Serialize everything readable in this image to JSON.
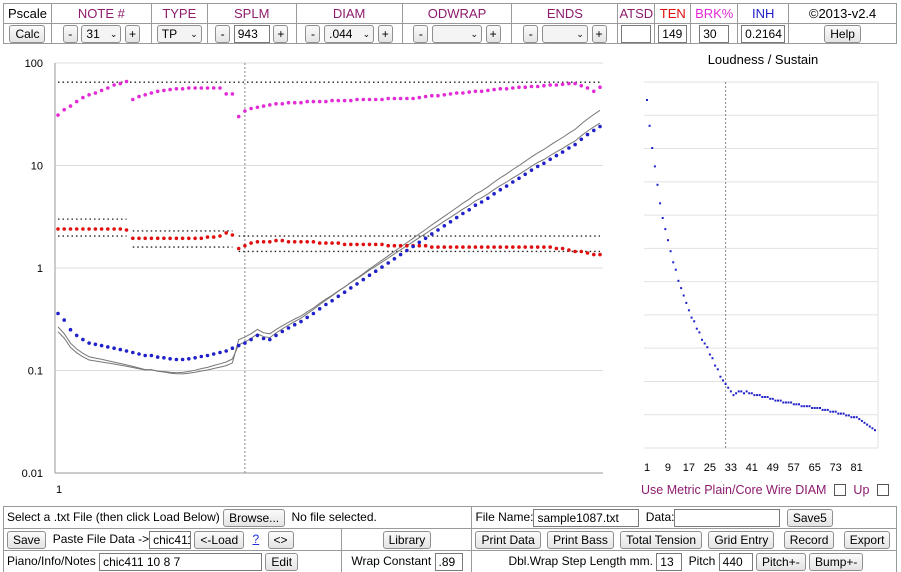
{
  "header": {
    "cells": [
      {
        "label": "Pscale",
        "color": "#000000"
      },
      {
        "label": "NOTE #",
        "color": "#8e1b6d"
      },
      {
        "label": "TYPE",
        "color": "#8e1b6d"
      },
      {
        "label": "SPLM",
        "color": "#8e1b6d"
      },
      {
        "label": "DIAM",
        "color": "#8e1b6d"
      },
      {
        "label": "ODWRAP",
        "color": "#8e1b6d"
      },
      {
        "label": "ENDS",
        "color": "#8e1b6d"
      },
      {
        "label": "ATSD",
        "color": "#8e1b6d"
      },
      {
        "label": "TEN",
        "color": "#e01010"
      },
      {
        "label": "BRK%",
        "color": "#e22bd6"
      },
      {
        "label": "INH",
        "color": "#2020c8"
      },
      {
        "label": "©2013-v2.4",
        "color": "#000000"
      }
    ]
  },
  "controls": {
    "calc": "Calc",
    "minus": "-",
    "plus": "+",
    "note_value": "31",
    "type_value": "TP",
    "splm_value": "943",
    "diam_value": ".044",
    "odwrap_value": "",
    "ends_value": "",
    "atsd_value": "",
    "ten_value": "149",
    "brk_value": "30",
    "inh_value": "0.2164",
    "help": "Help"
  },
  "main_chart": {
    "y_ticks": [
      "100",
      "10",
      "1",
      "0.1",
      "0.01"
    ],
    "x_tick": "1"
  },
  "chart_data": [
    {
      "type": "scatter",
      "title": "",
      "y_scale": "log",
      "ylim": [
        0.01,
        100
      ],
      "x_range": [
        1,
        88
      ],
      "grid": true,
      "series": [
        {
          "name": "",
          "color": "#e22bd6",
          "x": [
            1,
            2,
            3,
            4,
            5,
            6,
            7,
            8,
            9,
            10,
            11,
            12,
            13,
            14,
            15,
            16,
            17,
            18,
            19,
            20,
            21,
            22,
            23,
            24,
            25,
            26,
            27,
            28,
            29,
            30,
            31,
            32,
            33,
            34,
            35,
            36,
            37,
            38,
            39,
            40,
            41,
            42,
            43,
            44,
            45,
            46,
            47,
            48,
            49,
            50,
            51,
            52,
            53,
            54,
            55,
            56,
            57,
            58,
            59,
            60,
            61,
            62,
            63,
            64,
            65,
            66,
            67,
            68,
            69,
            70,
            71,
            72,
            73,
            74,
            75,
            76,
            77,
            78,
            79,
            80,
            81,
            82,
            83,
            84,
            85,
            86,
            87,
            88
          ],
          "y": [
            31,
            35,
            38,
            42,
            46,
            49,
            51,
            54,
            57,
            61,
            63,
            66,
            44,
            47,
            49,
            51,
            53,
            54,
            55,
            56,
            56,
            57,
            57,
            57,
            57,
            57,
            57,
            50,
            50,
            30,
            34,
            36,
            37,
            38,
            39,
            40,
            40,
            41,
            41,
            41,
            42,
            42,
            42,
            42,
            43,
            43,
            43,
            43,
            44,
            44,
            44,
            44,
            44,
            45,
            45,
            45,
            45,
            45,
            46,
            47,
            48,
            48,
            49,
            50,
            51,
            51,
            52,
            53,
            53,
            54,
            55,
            56,
            56,
            57,
            58,
            58,
            59,
            59,
            60,
            61,
            61,
            62,
            63,
            63,
            60,
            57,
            53,
            58
          ]
        },
        {
          "name": "",
          "color": "#e01010",
          "x": [
            1,
            2,
            3,
            4,
            5,
            6,
            7,
            8,
            9,
            10,
            11,
            12,
            13,
            14,
            15,
            16,
            17,
            18,
            19,
            20,
            21,
            22,
            23,
            24,
            25,
            26,
            27,
            28,
            29,
            30,
            31,
            32,
            33,
            34,
            35,
            36,
            37,
            38,
            39,
            40,
            41,
            42,
            43,
            44,
            45,
            46,
            47,
            48,
            49,
            50,
            51,
            52,
            53,
            54,
            55,
            56,
            57,
            58,
            59,
            60,
            61,
            62,
            63,
            64,
            65,
            66,
            67,
            68,
            69,
            70,
            71,
            72,
            73,
            74,
            75,
            76,
            77,
            78,
            79,
            80,
            81,
            82,
            83,
            84,
            85,
            86,
            87,
            88
          ],
          "y": [
            2.4,
            2.4,
            2.4,
            2.4,
            2.4,
            2.4,
            2.4,
            2.4,
            2.4,
            2.4,
            2.4,
            2.35,
            1.95,
            1.95,
            1.95,
            1.95,
            1.95,
            1.95,
            1.95,
            1.95,
            1.95,
            1.95,
            1.95,
            1.95,
            2.0,
            2.0,
            2.05,
            2.2,
            2.1,
            1.55,
            1.65,
            1.75,
            1.8,
            1.8,
            1.8,
            1.85,
            1.85,
            1.8,
            1.8,
            1.8,
            1.8,
            1.8,
            1.75,
            1.75,
            1.75,
            1.75,
            1.7,
            1.7,
            1.7,
            1.7,
            1.7,
            1.7,
            1.7,
            1.65,
            1.65,
            1.65,
            1.65,
            1.65,
            1.65,
            1.65,
            1.6,
            1.6,
            1.6,
            1.6,
            1.6,
            1.6,
            1.6,
            1.6,
            1.6,
            1.6,
            1.6,
            1.6,
            1.6,
            1.6,
            1.6,
            1.6,
            1.6,
            1.6,
            1.6,
            1.6,
            1.55,
            1.55,
            1.5,
            1.45,
            1.45,
            1.4,
            1.35,
            1.35
          ]
        },
        {
          "name": "",
          "color": "#2020c8",
          "x": [
            1,
            2,
            3,
            4,
            5,
            6,
            7,
            8,
            9,
            10,
            11,
            12,
            13,
            14,
            15,
            16,
            17,
            18,
            19,
            20,
            21,
            22,
            23,
            24,
            25,
            26,
            27,
            28,
            29,
            30,
            31,
            32,
            33,
            34,
            35,
            36,
            37,
            38,
            39,
            40,
            41,
            42,
            43,
            44,
            45,
            46,
            47,
            48,
            49,
            50,
            51,
            52,
            53,
            54,
            55,
            56,
            57,
            58,
            59,
            60,
            61,
            62,
            63,
            64,
            65,
            66,
            67,
            68,
            69,
            70,
            71,
            72,
            73,
            74,
            75,
            76,
            77,
            78,
            79,
            80,
            81,
            82,
            83,
            84,
            85,
            86,
            87,
            88
          ],
          "y": [
            0.36,
            0.31,
            0.25,
            0.22,
            0.2,
            0.185,
            0.18,
            0.175,
            0.17,
            0.165,
            0.16,
            0.155,
            0.15,
            0.145,
            0.14,
            0.14,
            0.135,
            0.133,
            0.13,
            0.128,
            0.128,
            0.13,
            0.133,
            0.137,
            0.14,
            0.145,
            0.15,
            0.155,
            0.165,
            0.175,
            0.185,
            0.2,
            0.22,
            0.205,
            0.2,
            0.22,
            0.24,
            0.26,
            0.28,
            0.3,
            0.33,
            0.36,
            0.4,
            0.44,
            0.48,
            0.53,
            0.58,
            0.64,
            0.7,
            0.77,
            0.85,
            0.93,
            1.02,
            1.12,
            1.23,
            1.35,
            1.48,
            1.62,
            1.78,
            1.95,
            2.15,
            2.35,
            2.58,
            2.82,
            3.1,
            3.4,
            3.7,
            4.1,
            4.4,
            4.8,
            5.3,
            5.8,
            6.3,
            6.9,
            7.5,
            8.2,
            9.0,
            9.8,
            10.5,
            11.5,
            12.5,
            13.5,
            14.8,
            16.0,
            18.0,
            20.0,
            22.0,
            24.0
          ]
        }
      ]
    },
    {
      "type": "scatter",
      "title": "Loudness / Sustain",
      "x_ticks": [
        "1",
        "9",
        "17",
        "25",
        "33",
        "41",
        "49",
        "57",
        "65",
        "73",
        "81"
      ],
      "x_range": [
        1,
        88
      ],
      "series": [
        {
          "name": "",
          "color": "#2020c8",
          "x": [
            1,
            2,
            3,
            4,
            5,
            6,
            7,
            8,
            9,
            10,
            11,
            12,
            13,
            14,
            15,
            16,
            17,
            18,
            19,
            20,
            21,
            22,
            23,
            24,
            25,
            26,
            27,
            28,
            29,
            30,
            31,
            32,
            33,
            34,
            35,
            36,
            37,
            38,
            39,
            40,
            41,
            42,
            43,
            44,
            45,
            46,
            47,
            48,
            49,
            50,
            51,
            52,
            53,
            54,
            55,
            56,
            57,
            58,
            59,
            60,
            61,
            62,
            63,
            64,
            65,
            66,
            67,
            68,
            69,
            70,
            71,
            72,
            73,
            74,
            75,
            76,
            77,
            78,
            79,
            80,
            81,
            82,
            83,
            84,
            85,
            86,
            87,
            88
          ],
          "y": [
            100,
            93,
            87,
            82,
            77,
            72,
            68,
            65,
            62,
            59,
            56,
            54,
            51,
            49,
            47,
            45,
            43,
            41,
            40,
            38,
            37,
            35,
            34,
            33,
            31,
            30,
            28,
            27,
            25,
            24,
            23,
            22,
            21,
            20,
            20.5,
            21,
            21,
            20.5,
            21,
            20.5,
            20.5,
            20,
            20,
            20,
            19.5,
            19.5,
            19.5,
            19,
            19,
            18.5,
            18.5,
            18.5,
            18,
            18,
            18,
            18,
            17.5,
            17.5,
            17.5,
            17,
            17,
            17,
            17,
            16.5,
            16.5,
            16.5,
            16.5,
            16,
            16,
            16,
            15.5,
            15.5,
            15.5,
            15,
            15,
            15,
            14.5,
            14.5,
            14,
            14,
            14,
            13.5,
            13,
            12.5,
            12,
            11.5,
            11,
            10.5
          ]
        }
      ]
    }
  ],
  "metric": {
    "label": "Use Metric Plain/Core Wire DIAM",
    "up": "Up"
  },
  "bottom": {
    "select_file_label": "Select a .txt File (then click Load Below)",
    "browse": "Browse...",
    "no_file": "No file selected.",
    "file_name_label": "File Name:",
    "file_name_value": "sample1087.txt",
    "data_label": "Data:",
    "data_value": "",
    "save5": "Save5",
    "save": "Save",
    "paste_label": "Paste File Data ->",
    "paste_value": "chic411",
    "load": "<-Load",
    "help_q": "?",
    "swap": "<>",
    "library": "Library",
    "print_data": "Print Data",
    "print_bass": "Print Bass",
    "total_tension": "Total Tension",
    "grid_entry": "Grid Entry",
    "record": "Record",
    "export": "Export",
    "notes_label": "Piano/Info/Notes",
    "notes_value": "chic411 10 8 7",
    "edit": "Edit",
    "wrap_constant_label": "Wrap Constant",
    "wrap_constant_value": ".89",
    "dbl_wrap_label": "Dbl.Wrap Step Length mm.",
    "dbl_wrap_value": "13",
    "pitch_label": "Pitch",
    "pitch_value": "440",
    "pitch_btn": "Pitch+-",
    "bump_btn": "Bump+-"
  }
}
